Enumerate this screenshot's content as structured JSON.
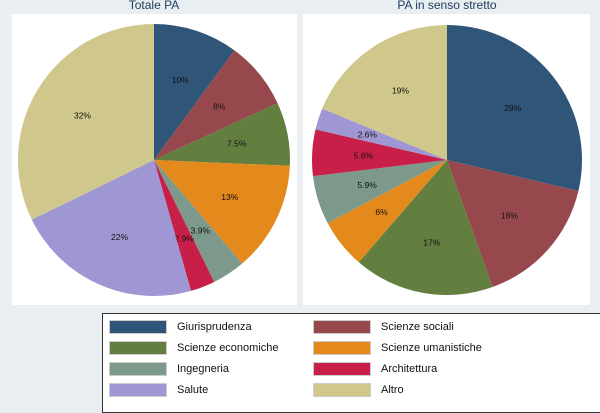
{
  "chart_data": [
    {
      "type": "pie",
      "title": "Totale PA",
      "categories": [
        "Giurisprudenza",
        "Scienze sociali",
        "Scienze economiche",
        "Scienze umanistiche",
        "Ingegneria",
        "Architettura",
        "Salute",
        "Altro"
      ],
      "values": [
        10,
        8,
        7.5,
        13,
        3.9,
        2.9,
        22,
        32
      ],
      "labels": [
        "10%",
        "8%",
        "7.5%",
        "13%",
        "3.9%",
        "2.9%",
        "22%",
        "32%"
      ]
    },
    {
      "type": "pie",
      "title": "PA in senso stretto",
      "categories": [
        "Giurisprudenza",
        "Scienze sociali",
        "Scienze economiche",
        "Scienze umanistiche",
        "Ingegneria",
        "Architettura",
        "Salute",
        "Altro"
      ],
      "values": [
        29,
        16,
        17,
        6,
        5.9,
        5.6,
        2.6,
        19
      ],
      "labels": [
        "29%",
        "16%",
        "17%",
        "6%",
        "5.9%",
        "5.6%",
        "2.6%",
        "19%"
      ]
    }
  ],
  "legend": {
    "position": "bottom",
    "items": [
      {
        "label": "Giurisprudenza",
        "color": "#2f5579"
      },
      {
        "label": "Scienze sociali",
        "color": "#96484d"
      },
      {
        "label": "Scienze economiche",
        "color": "#627f3f"
      },
      {
        "label": "Scienze umanistiche",
        "color": "#e48a1d"
      },
      {
        "label": "Ingegneria",
        "color": "#7c998b"
      },
      {
        "label": "Architettura",
        "color": "#c81f49"
      },
      {
        "label": "Salute",
        "color": "#9e97d3"
      },
      {
        "label": "Altro",
        "color": "#cfc78b"
      }
    ]
  }
}
